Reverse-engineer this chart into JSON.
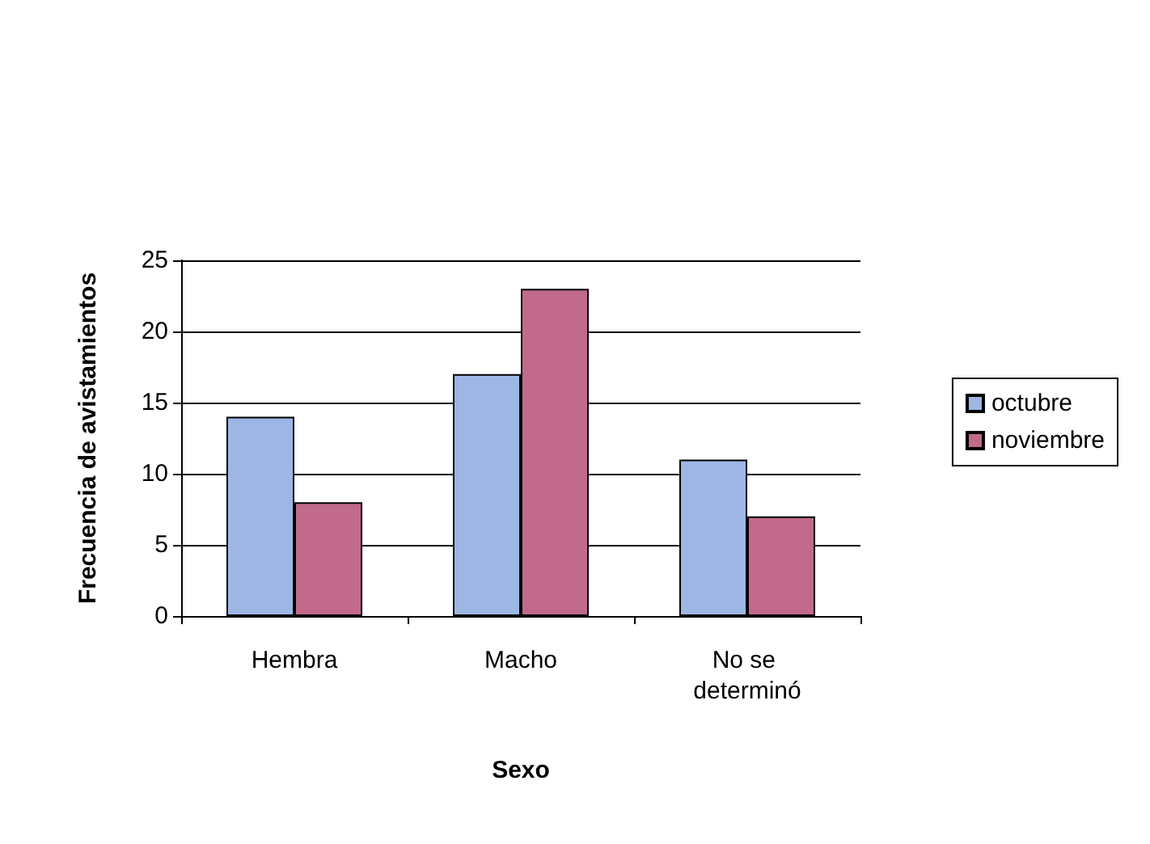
{
  "chart_data": {
    "type": "bar",
    "xlabel": "Sexo",
    "ylabel": "Frecuencia de avistamientos",
    "categories": [
      "Hembra",
      "Macho",
      "No se determinó"
    ],
    "series": [
      {
        "name": "octubre",
        "color": "#9db6e4",
        "values": [
          14,
          17,
          11
        ]
      },
      {
        "name": "noviembre",
        "color": "#c26a8c",
        "values": [
          8,
          23,
          7
        ]
      }
    ],
    "ylim": [
      0,
      25
    ],
    "yticks": [
      0,
      5,
      10,
      15,
      20,
      25
    ],
    "grid": "y",
    "legend": "right"
  }
}
